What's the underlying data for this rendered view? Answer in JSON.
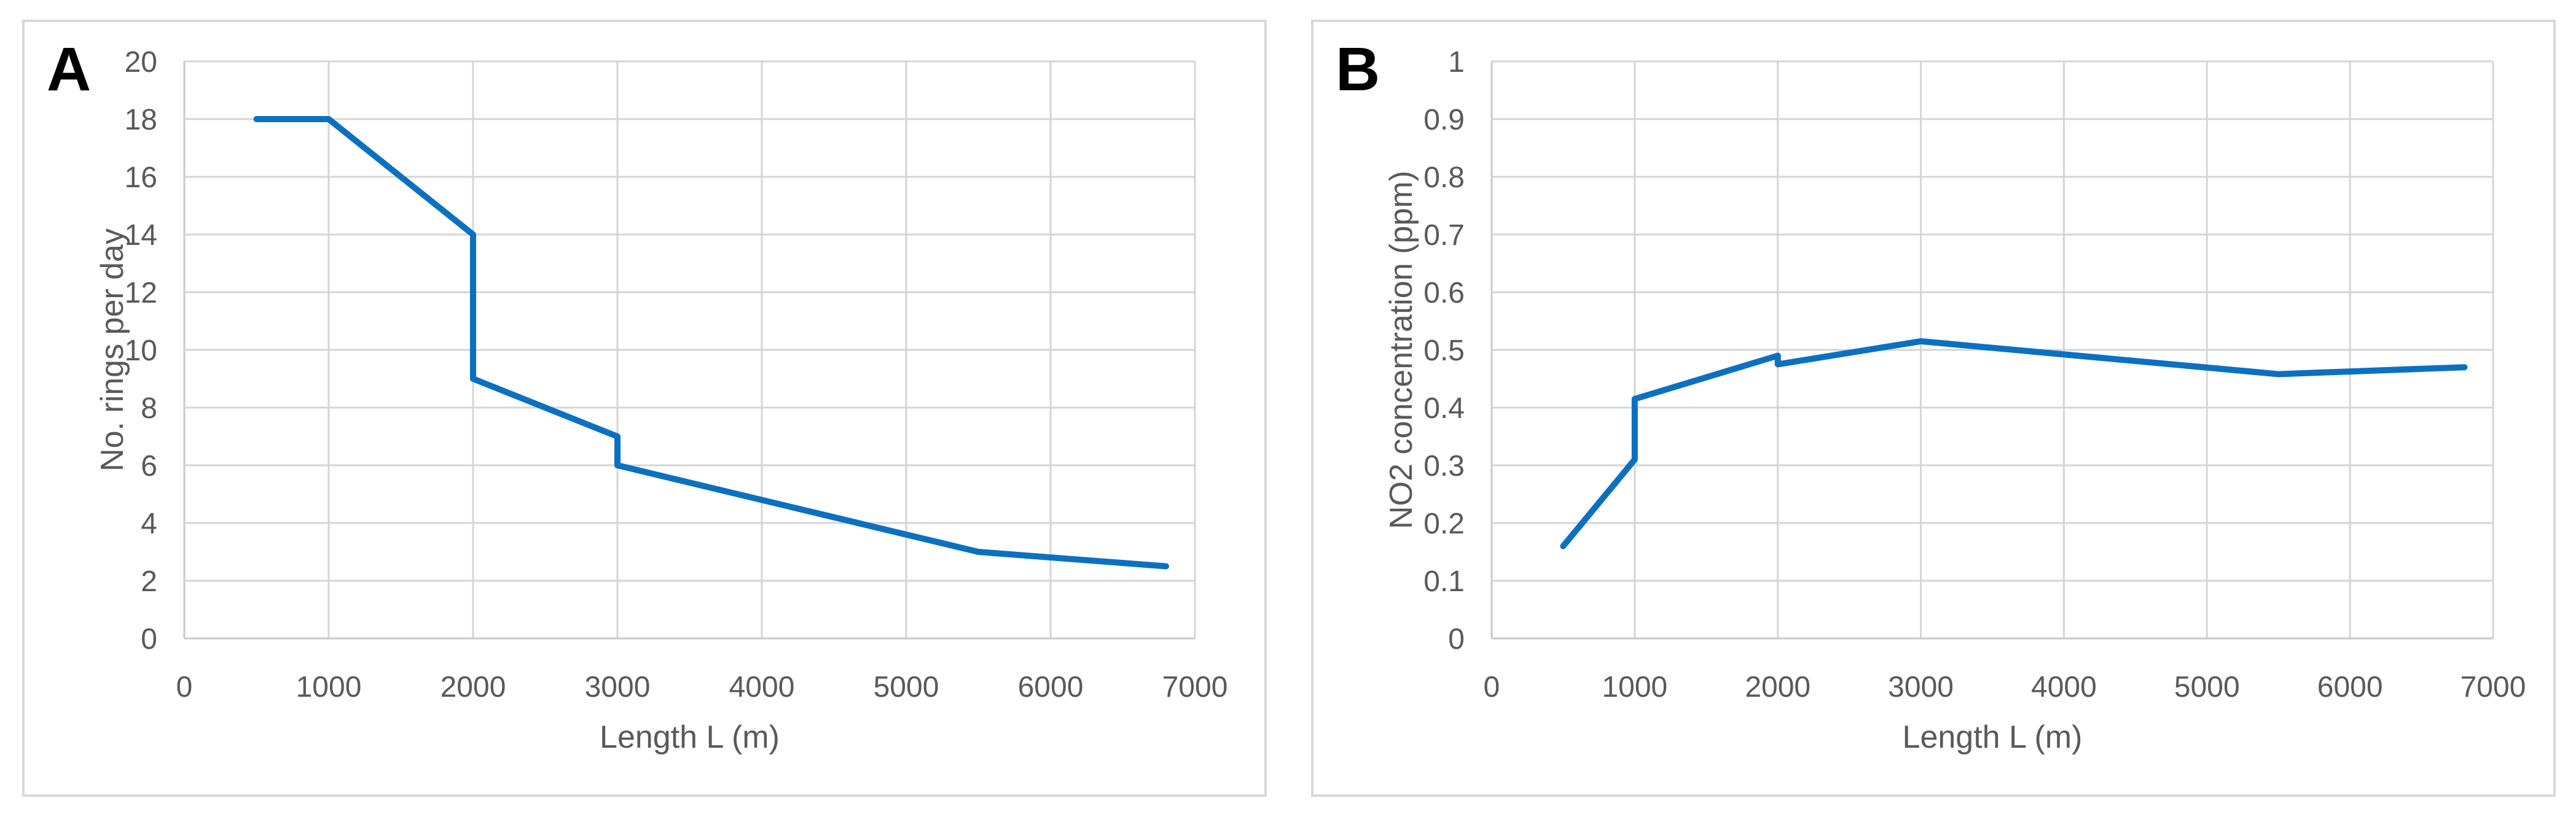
{
  "colors": {
    "line": "#0C70C0",
    "grid": "#D5D5D5",
    "axis": "#C9C9C9",
    "tick_text": "#595959",
    "title_text": "#595959",
    "panel_border": "#D8D8D8",
    "panel_label": "#000000",
    "background": "#FFFFFF"
  },
  "chart_data": [
    {
      "panel_label": "A",
      "type": "line",
      "title": "",
      "xlabel": "Length L (m)",
      "ylabel": "No. rings per day",
      "xlim": [
        0,
        7000
      ],
      "ylim": [
        0,
        20
      ],
      "xticks": [
        0,
        1000,
        2000,
        3000,
        4000,
        5000,
        6000,
        7000
      ],
      "xtick_labels": [
        "0",
        "1000",
        "2000",
        "3000",
        "4000",
        "5000",
        "6000",
        "7000"
      ],
      "yticks": [
        0,
        2,
        4,
        6,
        8,
        10,
        12,
        14,
        16,
        18,
        20
      ],
      "ytick_labels": [
        "0",
        "2",
        "4",
        "6",
        "8",
        "10",
        "12",
        "14",
        "16",
        "18",
        "20"
      ],
      "grid": true,
      "legend": null,
      "series": [
        {
          "name": "No. rings per day",
          "x": [
            500,
            1000,
            2000,
            2000,
            3000,
            3000,
            5500,
            6800
          ],
          "y": [
            18,
            18,
            14,
            9,
            7,
            6,
            3,
            2.5
          ]
        }
      ]
    },
    {
      "panel_label": "B",
      "type": "line",
      "title": "",
      "xlabel": "Length L (m)",
      "ylabel": "NO2 concentration (ppm)",
      "xlim": [
        0,
        7000
      ],
      "ylim": [
        0,
        1
      ],
      "xticks": [
        0,
        1000,
        2000,
        3000,
        4000,
        5000,
        6000,
        7000
      ],
      "xtick_labels": [
        "0",
        "1000",
        "2000",
        "3000",
        "4000",
        "5000",
        "6000",
        "7000"
      ],
      "yticks": [
        0,
        0.1,
        0.2,
        0.3,
        0.4,
        0.5,
        0.6,
        0.7,
        0.8,
        0.9,
        1
      ],
      "ytick_labels": [
        "0",
        "0.1",
        "0.2",
        "0.3",
        "0.4",
        "0.5",
        "0.6",
        "0.7",
        "0.8",
        "0.9",
        "1"
      ],
      "grid": true,
      "legend": null,
      "series": [
        {
          "name": "NO2 concentration (ppm)",
          "x": [
            500,
            1000,
            1000,
            2000,
            2000,
            3000,
            5500,
            6800
          ],
          "y": [
            0.16,
            0.31,
            0.415,
            0.49,
            0.475,
            0.515,
            0.458,
            0.47
          ]
        }
      ]
    }
  ]
}
